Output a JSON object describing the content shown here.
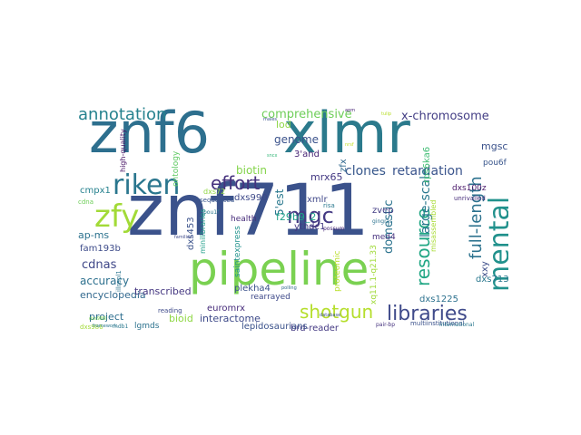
{
  "words": [
    {
      "text": "znf6",
      "color": "#2d6f8e"
    },
    {
      "text": "xlmr",
      "color": "#2b7a8c"
    },
    {
      "text": "znf711",
      "color": "#3b528b"
    },
    {
      "text": "pipeline",
      "color": "#7ad151"
    },
    {
      "text": "mental",
      "color": "#21918c"
    },
    {
      "text": "zfy",
      "color": "#a2da37"
    },
    {
      "text": "riken",
      "color": "#2a768e"
    },
    {
      "text": "effort",
      "color": "#46327e"
    },
    {
      "text": "annotation",
      "color": "#26828e"
    },
    {
      "text": "libraries",
      "color": "#3f4a8a"
    },
    {
      "text": "shotgun",
      "color": "#b5de2b"
    },
    {
      "text": "resource",
      "color": "#22a785"
    },
    {
      "text": "full-length",
      "color": "#2c728e"
    },
    {
      "text": "x-chromosome",
      "color": "#433e85"
    },
    {
      "text": "mgc",
      "color": "#443a83"
    },
    {
      "text": "comprehensive",
      "color": "#6ece58"
    },
    {
      "text": "clones",
      "color": "#38588c"
    },
    {
      "text": "retardation",
      "color": "#3a548c"
    },
    {
      "text": "large-scale",
      "color": "#2a788e"
    },
    {
      "text": "domestic",
      "color": "#2c738e"
    },
    {
      "text": "genome",
      "color": "#3b528b"
    },
    {
      "text": "biotin",
      "color": "#84d44b"
    },
    {
      "text": "cdnas",
      "color": "#3f4788"
    },
    {
      "text": "accuracy",
      "color": "#2d708e"
    },
    {
      "text": "encyclopedia",
      "color": "#31688e"
    },
    {
      "text": "project",
      "color": "#2e6e8e"
    },
    {
      "text": "transcribed",
      "color": "#453781"
    },
    {
      "text": "bioid",
      "color": "#8fd744"
    },
    {
      "text": "interactome",
      "color": "#3e4a89"
    },
    {
      "text": "brd-reader",
      "color": "#443983"
    },
    {
      "text": "ap-ms",
      "color": "#2c728e"
    },
    {
      "text": "fam193b",
      "color": "#3e4c8a"
    },
    {
      "text": "euromrx",
      "color": "#472d7b"
    },
    {
      "text": "lod",
      "color": "#8ed645"
    },
    {
      "text": "mrx65",
      "color": "#443983"
    },
    {
      "text": "xmlr",
      "color": "#3f4788"
    },
    {
      "text": "3'and",
      "color": "#482475"
    },
    {
      "text": "5'est",
      "color": "#2a788e"
    },
    {
      "text": "f29b9_2",
      "color": "#1fa088"
    },
    {
      "text": "ythdc1",
      "color": "#443a83"
    },
    {
      "text": "med4",
      "color": "#46307e"
    },
    {
      "text": "plekha4",
      "color": "#3b528b"
    },
    {
      "text": "dxs990",
      "color": "#3e4989"
    },
    {
      "text": "health",
      "color": "#472c7a"
    },
    {
      "text": "dxs453",
      "color": "#3b528b"
    },
    {
      "text": "mgscv3",
      "color": "#3b528b"
    },
    {
      "text": "zvep",
      "color": "#433d84"
    },
    {
      "text": "rps6ka6",
      "color": "#3fbc73"
    },
    {
      "text": "zfx",
      "color": "#31688e"
    },
    {
      "text": "pou6f",
      "color": "#39568c"
    },
    {
      "text": "dxs100z",
      "color": "#481769"
    },
    {
      "text": "dxs1225",
      "color": "#2d718e"
    },
    {
      "text": "dxs7132",
      "color": "#2a788e"
    },
    {
      "text": "xxy",
      "color": "#3d4e8a"
    },
    {
      "text": "cmpx1",
      "color": "#26818e"
    },
    {
      "text": "lgmds",
      "color": "#2c728e"
    },
    {
      "text": "ontology",
      "color": "#5ec962"
    },
    {
      "text": "high-quality",
      "color": "#471365"
    },
    {
      "text": "dxs72",
      "color": "#90d743"
    },
    {
      "text": "xq11.1-q21.33",
      "color": "#a0da39"
    },
    {
      "text": "lepidosaurians",
      "color": "#3b528b"
    },
    {
      "text": "saintexpress",
      "color": "#20928c"
    },
    {
      "text": "proteomic",
      "color": "#b8de29"
    },
    {
      "text": "rearrayed",
      "color": "#3e4989"
    },
    {
      "text": "minilibraries",
      "color": "#1f9e89"
    },
    {
      "text": "sequenced",
      "color": "#39568c"
    },
    {
      "text": "reading",
      "color": "#3e4a89"
    },
    {
      "text": "risa",
      "color": "#2a788e"
    },
    {
      "text": "unrivalled",
      "color": "#472d7b"
    },
    {
      "text": "misassembled",
      "color": "#a8db34"
    },
    {
      "text": "multiinstitutional",
      "color": "#3b528b"
    },
    {
      "text": "possum",
      "color": "#482878"
    },
    {
      "text": "cdna",
      "color": "#6ece58"
    },
    {
      "text": "illrapl1",
      "color": "#2b748e"
    },
    {
      "text": "dxs986",
      "color": "#a2da37"
    },
    {
      "text": "mdb1",
      "color": "#2a788e"
    },
    {
      "text": "pou1f",
      "color": "#2a788e"
    },
    {
      "text": "international",
      "color": "#2a788e"
    },
    {
      "text": "pair-bp",
      "color": "#46327e"
    },
    {
      "text": "gingras",
      "color": "#2c728e"
    },
    {
      "text": "males",
      "color": "#3b528b"
    },
    {
      "text": "tulip",
      "color": "#b8de29"
    },
    {
      "text": "dxs986l",
      "color": "#7ad151"
    },
    {
      "text": "apm",
      "color": "#482475"
    },
    {
      "text": "nrsf",
      "color": "#c0df25"
    },
    {
      "text": "sncx",
      "color": "#35b779"
    },
    {
      "text": "framework",
      "color": "#2a788e"
    },
    {
      "text": "polling",
      "color": "#31688e"
    },
    {
      "text": "database",
      "color": "#3b528b"
    },
    {
      "text": "families",
      "color": "#3e4989"
    }
  ]
}
